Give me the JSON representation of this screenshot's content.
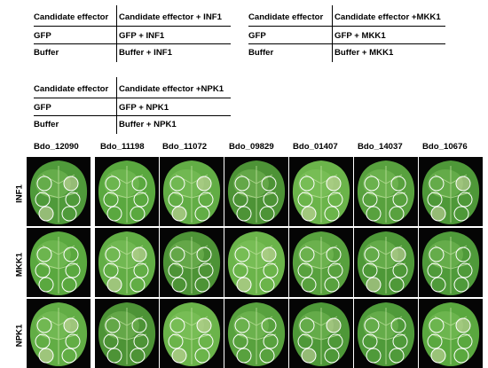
{
  "tables": [
    {
      "header": [
        "Candidate effector",
        "Candidate effector + INF1"
      ],
      "rows": [
        [
          "GFP",
          "GFP + INF1"
        ],
        [
          "Buffer",
          "Buffer + INF1"
        ]
      ]
    },
    {
      "header": [
        "Candidate effector",
        "Candidate effector +MKK1"
      ],
      "rows": [
        [
          "GFP",
          "GFP + MKK1"
        ],
        [
          "Buffer",
          "Buffer + MKK1"
        ]
      ]
    },
    {
      "header": [
        "Candidate effector",
        "Candidate effector +NPK1"
      ],
      "rows": [
        [
          "GFP",
          "GFP + NPK1"
        ],
        [
          "Buffer",
          "Buffer + NPK1"
        ]
      ]
    }
  ],
  "grid": {
    "columns": [
      "Bdo_12090",
      "Bdo_11198",
      "Bdo_11072",
      "Bdo_09829",
      "Bdo_01407",
      "Bdo_14037",
      "Bdo_10676"
    ],
    "rows": [
      "INF1",
      "MKK1",
      "NPK1"
    ]
  }
}
